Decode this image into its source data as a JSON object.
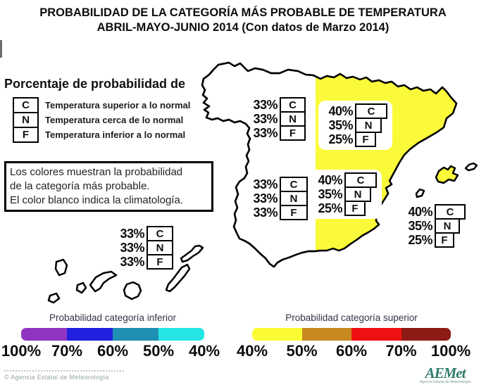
{
  "title": {
    "line1": "PROBABILIDAD DE LA CATEGORÍA MÁS PROBABLE DE TEMPERATURA",
    "line2": "ABRIL-MAYO-JUNIO 2014 (Con datos de Marzo 2014)"
  },
  "legend": {
    "heading": "Porcentaje de probabilidad de",
    "items": [
      {
        "code": "C",
        "label": "Temperatura superior a lo normal"
      },
      {
        "code": "N",
        "label": "Temperatura cerca de lo normal"
      },
      {
        "code": "F",
        "label": "Temperatura inferior a lo normal"
      }
    ]
  },
  "note": {
    "lines": [
      "Los colores muestran la probabilidad",
      "de la categoría más probable.",
      "El color blanco indica la climatología."
    ]
  },
  "map": {
    "region_fill": "#FAFA3A",
    "groups": [
      {
        "id": "northwest",
        "rows": [
          {
            "pct": "33%",
            "cat": "C"
          },
          {
            "pct": "33%",
            "cat": "N"
          },
          {
            "pct": "33%",
            "cat": "F"
          }
        ]
      },
      {
        "id": "northeast",
        "rows": [
          {
            "pct": "40%",
            "cat": "C"
          },
          {
            "pct": "35%",
            "cat": "N"
          },
          {
            "pct": "25%",
            "cat": "F"
          }
        ]
      },
      {
        "id": "southwest",
        "rows": [
          {
            "pct": "33%",
            "cat": "C"
          },
          {
            "pct": "33%",
            "cat": "N"
          },
          {
            "pct": "33%",
            "cat": "F"
          }
        ]
      },
      {
        "id": "southeast",
        "rows": [
          {
            "pct": "40%",
            "cat": "C"
          },
          {
            "pct": "35%",
            "cat": "N"
          },
          {
            "pct": "25%",
            "cat": "F"
          }
        ]
      },
      {
        "id": "balearic",
        "rows": [
          {
            "pct": "40%",
            "cat": "C"
          },
          {
            "pct": "35%",
            "cat": "N"
          },
          {
            "pct": "25%",
            "cat": "F"
          }
        ]
      },
      {
        "id": "canary",
        "rows": [
          {
            "pct": "33%",
            "cat": "C"
          },
          {
            "pct": "33%",
            "cat": "N"
          },
          {
            "pct": "33%",
            "cat": "F"
          }
        ]
      }
    ]
  },
  "scales": [
    {
      "id": "inferior",
      "title": "Probabilidad categoría inferior",
      "labels": [
        "100%",
        "70%",
        "60%",
        "50%",
        "40%"
      ],
      "colors": [
        "#8F35C2",
        "#2020DE",
        "#1F8FB3",
        "#26E4E4"
      ]
    },
    {
      "id": "superior",
      "title": "Probabilidad categoría superior",
      "labels": [
        "40%",
        "50%",
        "60%",
        "70%",
        "100%"
      ],
      "colors": [
        "#FBFB35",
        "#C8871F",
        "#EF1111",
        "#8E1A14"
      ]
    }
  ],
  "footer": {
    "copyright": "© Agencia Estatal de Meteorología",
    "logo_text": "AEMet",
    "logo_tagline": "Agencia Estatal de Meteorología"
  }
}
